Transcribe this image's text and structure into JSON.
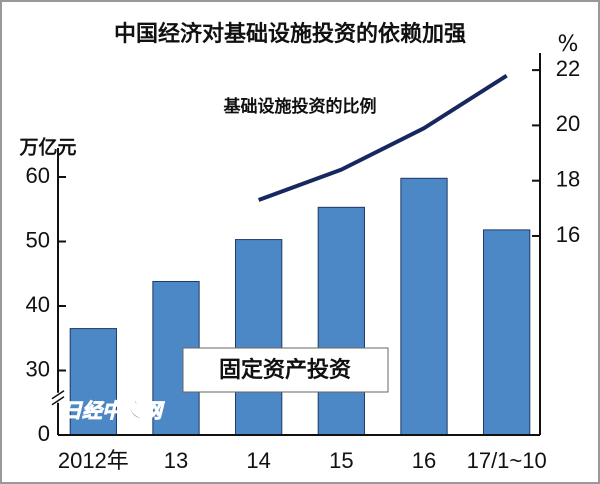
{
  "chart_data": {
    "type": "bar",
    "title": "中国经济对基础设施投资的依赖加强",
    "y_label": "万亿元",
    "y2_label": "%",
    "categories": [
      "2012年",
      "13",
      "14",
      "15",
      "16",
      "17/1~10"
    ],
    "series": [
      {
        "name": "固定资产投资",
        "type": "bar",
        "color": "#4d88c6",
        "values": [
          36.5,
          43.8,
          50.3,
          55.3,
          59.8,
          51.8
        ]
      },
      {
        "name": "基础设施投资的比例",
        "type": "line",
        "axis": "y2",
        "color": "#17275f",
        "values": [
          null,
          null,
          17.3,
          18.4,
          19.9,
          21.8
        ]
      }
    ],
    "ylim": [
      20,
      80
    ],
    "yticks": [
      30,
      40,
      50,
      60
    ],
    "axis_break": {
      "below": 30,
      "origin": 0
    },
    "y2lim": [
      8.8,
      22.8
    ],
    "y2ticks": [
      16,
      18,
      20,
      22
    ],
    "watermark": "日经中文网"
  }
}
